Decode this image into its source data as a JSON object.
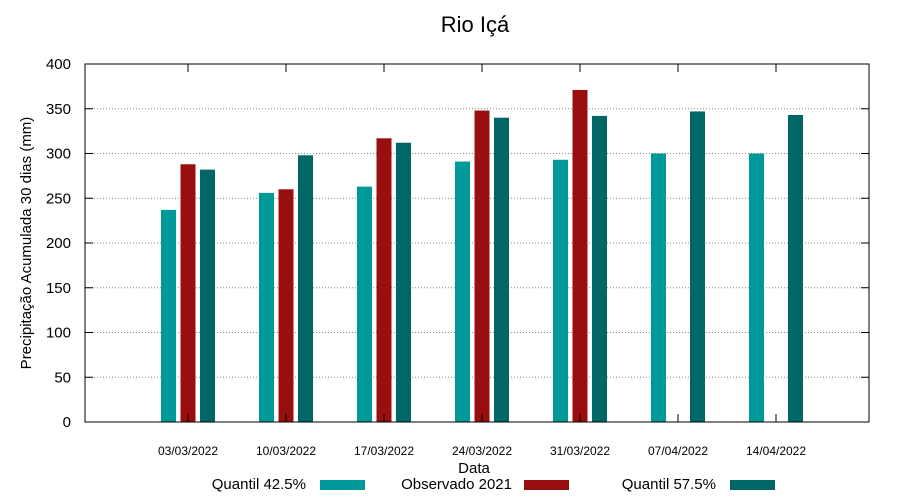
{
  "chart_data": {
    "type": "bar",
    "title": "Rio Içá",
    "xlabel": "Data",
    "ylabel": "Precipitação Acumulada 30 dias (mm)",
    "ylim": [
      0,
      400
    ],
    "yticks": [
      "0",
      "50",
      "100",
      "150",
      "200",
      "250",
      "300",
      "350",
      "400"
    ],
    "grid": true,
    "legend_position": "bottom",
    "categories": [
      "03/03/2022",
      "10/03/2022",
      "17/03/2022",
      "24/03/2022",
      "31/03/2022",
      "07/04/2022",
      "14/04/2022"
    ],
    "series": [
      {
        "name": "Quantil 42.5%",
        "color": "#009999",
        "values": [
          237,
          256,
          263,
          291,
          293,
          300,
          300
        ]
      },
      {
        "name": "Observado 2021",
        "color": "#990f0f",
        "values": [
          288,
          260,
          317,
          348,
          371,
          null,
          null
        ]
      },
      {
        "name": "Quantil 57.5%",
        "color": "#006666",
        "values": [
          282,
          298,
          312,
          340,
          342,
          347,
          343
        ]
      }
    ]
  }
}
